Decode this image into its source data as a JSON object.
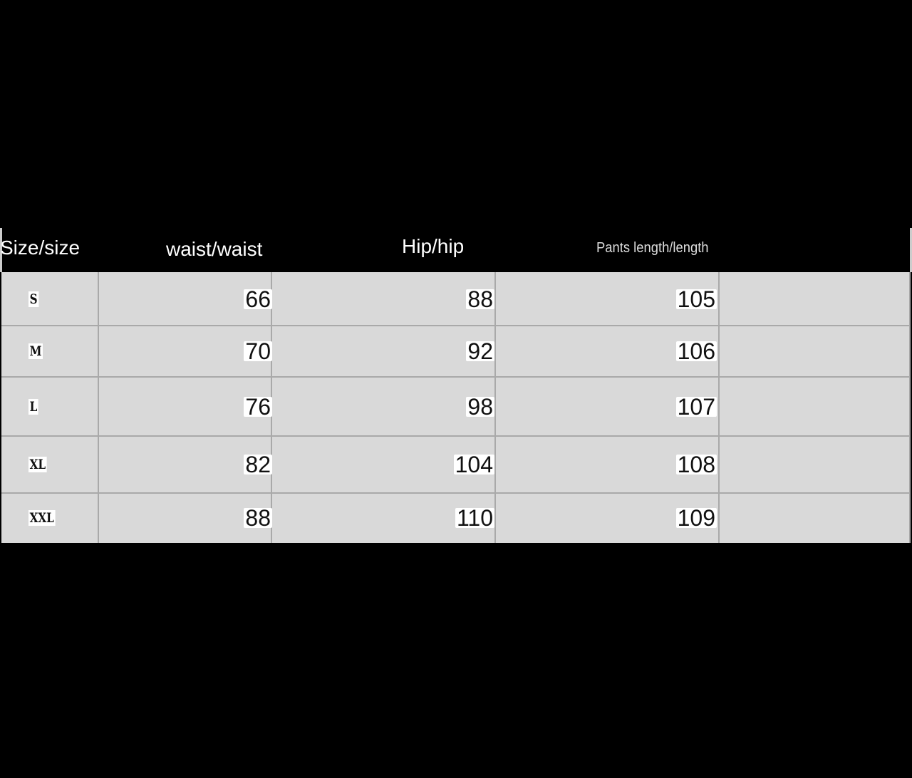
{
  "headers": [
    "Size/size",
    "waist/waist",
    "Hip/hip",
    "Pants length/length"
  ],
  "rows": [
    {
      "size": "S",
      "waist": "66",
      "hip": "88",
      "length": "105"
    },
    {
      "size": "M",
      "waist": "70",
      "hip": "92",
      "length": "106"
    },
    {
      "size": "L",
      "waist": "76",
      "hip": "98",
      "length": "107"
    },
    {
      "size": "XL",
      "waist": "82",
      "hip": "104",
      "length": "108"
    },
    {
      "size": "XXL",
      "waist": "88",
      "hip": "110",
      "length": "109"
    }
  ],
  "colors": {
    "background": "#000000",
    "header": "#000000",
    "cell": "#d9d9d9",
    "grid": "#a9a9a9"
  }
}
